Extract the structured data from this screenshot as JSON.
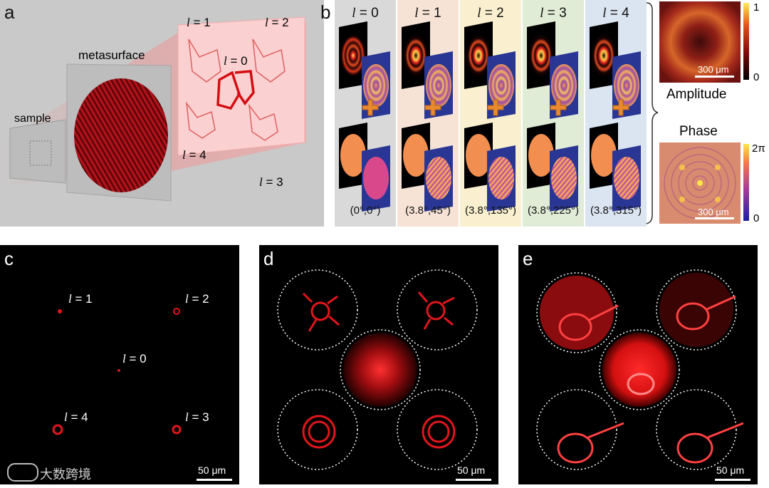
{
  "panels": {
    "a": {
      "label": "a",
      "metasurface": "metasurface",
      "sample": "sample",
      "orders": [
        {
          "l": "l",
          "eq": " = 1"
        },
        {
          "l": "l",
          "eq": " = 2"
        },
        {
          "l": "l",
          "eq": " = 0"
        },
        {
          "l": "l",
          "eq": " = 4"
        },
        {
          "l": "l",
          "eq": " = 3"
        }
      ]
    },
    "b": {
      "label": "b",
      "columns": [
        {
          "l": "l",
          "eq": " = 0",
          "angle": "(0°,0°)"
        },
        {
          "l": "l",
          "eq": " = 1",
          "angle": "(3.8°,45°)"
        },
        {
          "l": "l",
          "eq": " = 2",
          "angle": "(3.8°,135°)"
        },
        {
          "l": "l",
          "eq": " = 3",
          "angle": "(3.8°,225°)"
        },
        {
          "l": "l",
          "eq": " = 4",
          "angle": "(3.8°,315°)"
        }
      ],
      "amplitude": {
        "title": "Amplitude",
        "scale": "300 μm",
        "cbar_max": "1",
        "cbar_min": "0"
      },
      "phase": {
        "title": "Phase",
        "scale": "300 μm",
        "cbar_max": "2π",
        "cbar_min": "0"
      }
    },
    "c": {
      "label": "c",
      "scale": "50 μm",
      "orders": [
        {
          "l": "l",
          "eq": " = 1"
        },
        {
          "l": "l",
          "eq": " = 2"
        },
        {
          "l": "l",
          "eq": " = 0"
        },
        {
          "l": "l",
          "eq": " = 4"
        },
        {
          "l": "l",
          "eq": " = 3"
        }
      ],
      "watermark": "大数跨境"
    },
    "d": {
      "label": "d",
      "scale": "50 μm"
    },
    "e": {
      "label": "e",
      "scale": "50 μm"
    }
  },
  "colors": {
    "laser_red": "#e0161b",
    "col_tints": [
      "#d9d9d9",
      "#f6e3d6",
      "#faf0cf",
      "#e0ecd5",
      "#dbe4f1"
    ]
  }
}
